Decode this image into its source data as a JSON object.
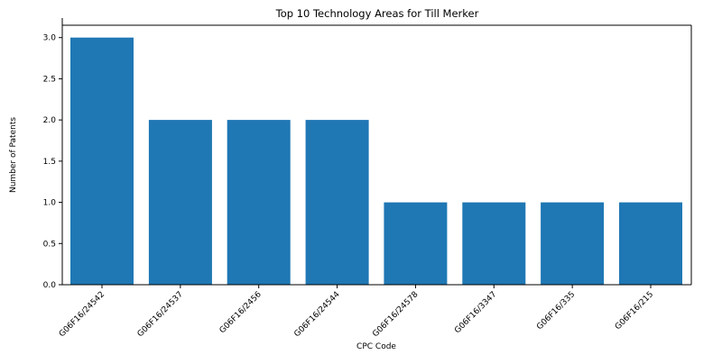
{
  "chart_data": {
    "type": "bar",
    "title": "Top 10 Technology Areas for Till Merker",
    "xlabel": "CPC Code",
    "ylabel": "Number of Patents",
    "categories": [
      "G06F16/24542",
      "G06F16/24537",
      "G06F16/2456",
      "G06F16/24544",
      "G06F16/24578",
      "G06F16/3347",
      "G06F16/335",
      "G06F16/215"
    ],
    "values": [
      3,
      2,
      2,
      2,
      1,
      1,
      1,
      1
    ],
    "ylim": [
      0,
      3.15
    ],
    "yticks": [
      "0.0",
      "0.5",
      "1.0",
      "1.5",
      "2.0",
      "2.5",
      "3.0"
    ],
    "grid": false,
    "legend": "none",
    "colors": {
      "bar": "#1f77b4",
      "axis": "#000000",
      "background": "#ffffff"
    }
  }
}
